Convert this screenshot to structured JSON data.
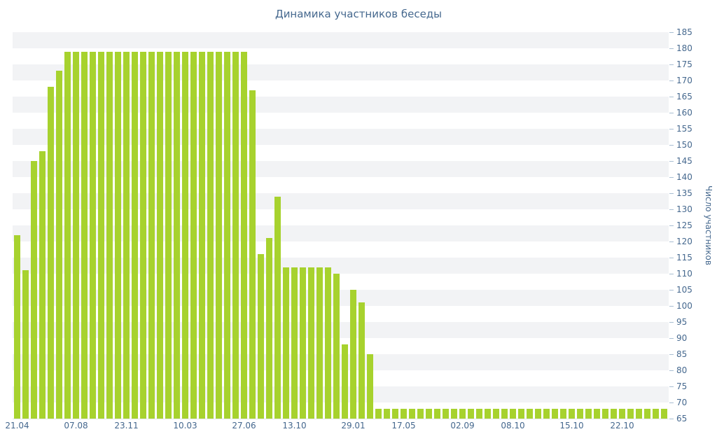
{
  "chart_data": {
    "type": "bar",
    "title": "Динамика участников беседы",
    "ylabel": "Число участников",
    "xlabel": "",
    "ylim": [
      65,
      185
    ],
    "ytick_step": 5,
    "yticks": [
      65,
      70,
      75,
      80,
      85,
      90,
      95,
      100,
      105,
      110,
      115,
      120,
      125,
      130,
      135,
      140,
      145,
      150,
      155,
      160,
      165,
      170,
      175,
      180,
      185
    ],
    "x_ticks": [
      {
        "label": "21.04",
        "index": 0
      },
      {
        "label": "07.08",
        "index": 7
      },
      {
        "label": "23.11",
        "index": 13
      },
      {
        "label": "10.03",
        "index": 20
      },
      {
        "label": "27.06",
        "index": 27
      },
      {
        "label": "13.10",
        "index": 33
      },
      {
        "label": "29.01",
        "index": 40
      },
      {
        "label": "17.05",
        "index": 46
      },
      {
        "label": "02.09",
        "index": 53
      },
      {
        "label": "08.10",
        "index": 59
      },
      {
        "label": "15.10",
        "index": 66
      },
      {
        "label": "22.10",
        "index": 72
      }
    ],
    "values": [
      122,
      111,
      145,
      148,
      168,
      173,
      179,
      179,
      179,
      179,
      179,
      179,
      179,
      179,
      179,
      179,
      179,
      179,
      179,
      179,
      179,
      179,
      179,
      179,
      179,
      179,
      179,
      179,
      167,
      116,
      121,
      134,
      112,
      112,
      112,
      112,
      112,
      112,
      110,
      88,
      105,
      101,
      85,
      68,
      68,
      68,
      68,
      68,
      68,
      68,
      68,
      68,
      68,
      68,
      68,
      68,
      68,
      68,
      68,
      68,
      68,
      68,
      68,
      68,
      68,
      68,
      68,
      68,
      68,
      68,
      68,
      68,
      68,
      68,
      68,
      68,
      68,
      68
    ],
    "colors": {
      "bar": "#a7d22e",
      "text": "#45688E",
      "stripe": "#f2f3f5"
    },
    "grid": "horizontal-bands",
    "legend": "none"
  }
}
